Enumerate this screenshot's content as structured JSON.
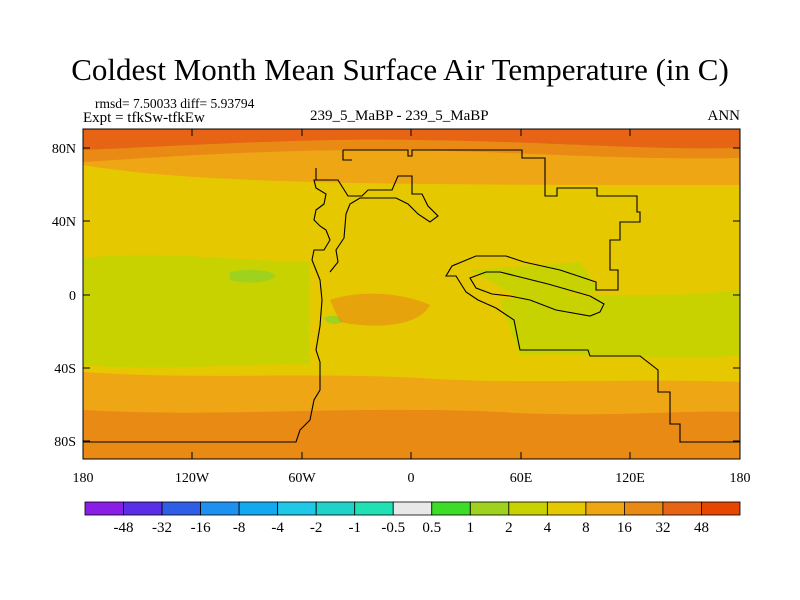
{
  "chart_data": {
    "type": "heatmap",
    "title": "Coldest Month Mean Surface Air Temperature (in C)",
    "stats_text": "rmsd= 7.50033  diff= 5.93794",
    "left_subtitle": "Expt = tfkSw-tfkEw",
    "center_subtitle": "239_5_MaBP - 239_5_MaBP",
    "right_subtitle": "ANN",
    "x_ticks": [
      "180",
      "120W",
      "60W",
      "0",
      "60E",
      "120E",
      "180"
    ],
    "y_ticks": [
      "80N",
      "40N",
      "0",
      "40S",
      "80S"
    ],
    "x_range": [
      -180,
      180
    ],
    "y_range": [
      -90,
      90
    ],
    "colorbar": {
      "labels": [
        "-48",
        "-32",
        "-16",
        "-8",
        "-4",
        "-2",
        "-1",
        "-0.5",
        "0.5",
        "1",
        "2",
        "4",
        "8",
        "16",
        "32",
        "48"
      ],
      "colors": [
        "#8a1ee6",
        "#5a2ee6",
        "#2f5ee6",
        "#1e90f0",
        "#14a8f0",
        "#1ec8e6",
        "#20d2c8",
        "#20e0b4",
        "#e8e8e8",
        "#3cdc28",
        "#9ed21e",
        "#c8d200",
        "#e6c800",
        "#eea614",
        "#e88a14",
        "#e66414",
        "#e64600"
      ]
    },
    "field_description_levels": {
      "north_polar": "32 to 48",
      "high_latitudes": "16 to 32",
      "mid_latitudes": "8 to 16",
      "tropics_ocean": "4 to 8",
      "small_cool_patch": "2 to 4"
    }
  }
}
